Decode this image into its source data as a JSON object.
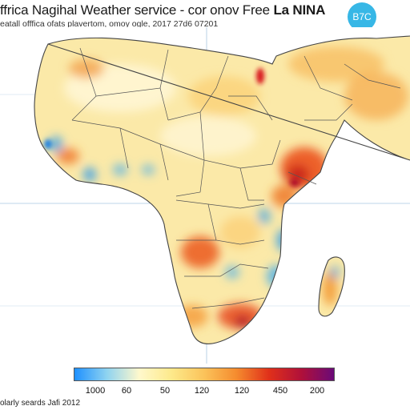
{
  "header": {
    "title_prefix": "ffrica Nagihal Weather service - cor onov Free ",
    "title_emphasis": "La NINA",
    "subtitle": "eatall offfica ofats plavertom, omoy ogle, 2017 27d6 07201",
    "badge": "B7C"
  },
  "legend": {
    "colors": [
      "#1e90ff",
      "#8fd3f0",
      "#fff8cc",
      "#fde98a",
      "#fbc35a",
      "#f58b2e",
      "#e0301a",
      "#b0103a",
      "#6a0a78"
    ],
    "ticks": [
      "1000",
      "60",
      "50",
      "120",
      "120",
      "450",
      "200"
    ]
  },
  "footer": {
    "text": "olarly seards Jafi 2012"
  }
}
